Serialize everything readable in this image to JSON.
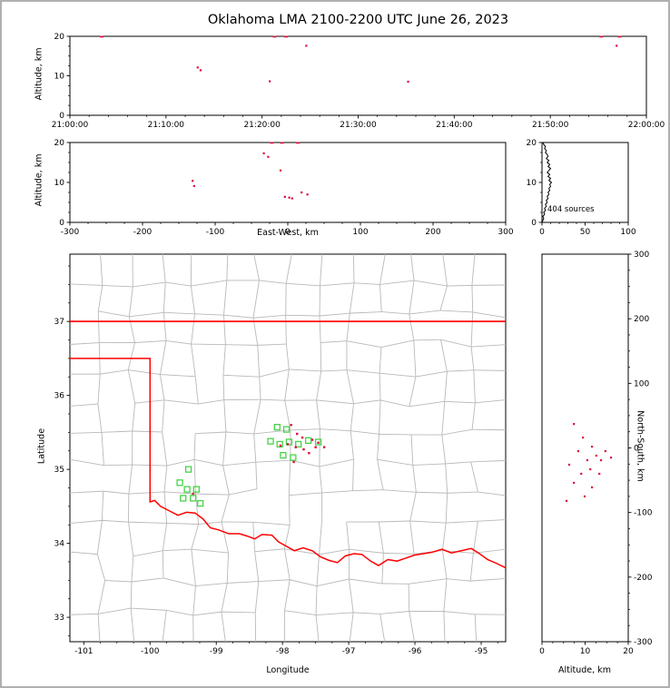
{
  "page": {
    "title": "Oklahoma LMA 2100-2200 UTC June 26, 2023",
    "background": "#ffffff",
    "frame_color": "#b0b0b0"
  },
  "colors": {
    "source_dot": "#dd0f3c",
    "station_marker": "#46d346",
    "state_border": "#ff0000",
    "county_line": "#b9b9b9",
    "histogram_line": "#000000",
    "axis": "#000000"
  },
  "chart_data": [
    {
      "id": "time-altitude",
      "type": "scatter",
      "xlabel": "",
      "ylabel": "Altitude, km",
      "xlim_minutes_after_2100": [
        0,
        60
      ],
      "x_ticks": [
        0,
        10,
        20,
        30,
        40,
        50,
        60
      ],
      "x_tick_labels": [
        "21:00:00",
        "21:10:00",
        "21:20:00",
        "21:30:00",
        "21:40:00",
        "21:50:00",
        "22:00:00"
      ],
      "x_minor_step": 2,
      "ylim": [
        0,
        20
      ],
      "y_ticks": [
        0,
        10,
        20
      ],
      "y_tick_labels": [
        "0",
        "10",
        "20"
      ],
      "y_minor_step": 2.5,
      "points_min_alt": [
        [
          3.3,
          19.9
        ],
        [
          13.3,
          12.1
        ],
        [
          13.6,
          11.4
        ],
        [
          20.8,
          8.6
        ],
        [
          21.3,
          19.9
        ],
        [
          22.5,
          19.9
        ],
        [
          24.6,
          17.6
        ],
        [
          35.2,
          8.5
        ],
        [
          55.3,
          19.9
        ],
        [
          57.2,
          19.9
        ],
        [
          56.9,
          17.6
        ]
      ]
    },
    {
      "id": "eastwest-altitude",
      "type": "scatter",
      "xlabel": "East-West, km",
      "ylabel": "Altitude, km",
      "xlim": [
        -300,
        300
      ],
      "x_ticks": [
        -300,
        -200,
        -100,
        0,
        100,
        200,
        300
      ],
      "x_tick_labels": [
        "-300",
        "-200",
        "-100",
        "0",
        "100",
        "200",
        "300"
      ],
      "x_minor_step": 25,
      "ylim": [
        0,
        20
      ],
      "y_ticks": [
        0,
        10,
        20
      ],
      "y_tick_labels": [
        "0",
        "10",
        "20"
      ],
      "y_minor_step": 2.5,
      "points_ew_alt": [
        [
          -131,
          10.4
        ],
        [
          -129,
          9.1
        ],
        [
          -33,
          17.3
        ],
        [
          -27,
          16.4
        ],
        [
          -10,
          13.0
        ],
        [
          -22,
          19.9
        ],
        [
          -8,
          19.9
        ],
        [
          14,
          19.9
        ],
        [
          -4,
          6.4
        ],
        [
          2,
          6.2
        ],
        [
          6,
          6.0
        ],
        [
          19,
          7.5
        ],
        [
          27,
          7.0
        ]
      ]
    },
    {
      "id": "altitude-histogram",
      "type": "line",
      "annotation": "404 sources",
      "xlabel": "",
      "ylabel": "",
      "xlim": [
        0,
        100
      ],
      "x_ticks": [
        0,
        50,
        100
      ],
      "x_tick_labels": [
        "0",
        "50",
        "100"
      ],
      "x_minor_step": 10,
      "ylim": [
        0,
        20
      ],
      "y_ticks": [
        0,
        10,
        20
      ],
      "y_tick_labels": [
        "0",
        "10",
        "20"
      ],
      "y_minor_step": 2.5,
      "alt_step_km": 0.5,
      "counts": [
        0,
        1,
        2,
        1,
        3,
        2,
        4,
        3,
        5,
        4,
        6,
        5,
        7,
        6,
        8,
        7,
        9,
        8,
        10,
        9,
        11,
        8,
        10,
        7,
        9,
        6,
        8,
        10,
        7,
        9,
        6,
        8,
        5,
        7,
        6,
        4,
        5,
        3,
        4,
        2,
        1
      ]
    },
    {
      "id": "plan-view-map",
      "type": "scatter",
      "xlabel": "Longitude",
      "ylabel": "Latitude",
      "xlim": [
        -101.21,
        -94.63
      ],
      "x_ticks": [
        -101,
        -100,
        -99,
        -98,
        -97,
        -96,
        -95
      ],
      "x_tick_labels": [
        "-101",
        "-100",
        "-99",
        "-98",
        "-97",
        "-96",
        "-95"
      ],
      "x_minor_step": 0.25,
      "ylim": [
        32.67,
        37.91
      ],
      "y_ticks": [
        33,
        34,
        35,
        36,
        37
      ],
      "y_tick_labels": [
        "33",
        "34",
        "35",
        "36",
        "37"
      ],
      "y_minor_step": 0.25,
      "state_border_north_37n": [
        [
          -101.21,
          37
        ],
        [
          -94.63,
          37
        ]
      ],
      "state_border_west_south": [
        [
          -101.21,
          36.5
        ],
        [
          -100.0,
          36.5
        ],
        [
          -100.0,
          34.56
        ],
        [
          -99.93,
          34.58
        ],
        [
          -99.84,
          34.5
        ],
        [
          -99.71,
          34.44
        ],
        [
          -99.58,
          34.38
        ],
        [
          -99.45,
          34.42
        ],
        [
          -99.32,
          34.41
        ],
        [
          -99.2,
          34.33
        ],
        [
          -99.09,
          34.21
        ],
        [
          -98.96,
          34.18
        ],
        [
          -98.81,
          34.13
        ],
        [
          -98.65,
          34.13
        ],
        [
          -98.54,
          34.1
        ],
        [
          -98.42,
          34.06
        ],
        [
          -98.31,
          34.12
        ],
        [
          -98.16,
          34.11
        ],
        [
          -98.06,
          34.02
        ],
        [
          -97.94,
          33.96
        ],
        [
          -97.82,
          33.9
        ],
        [
          -97.69,
          33.94
        ],
        [
          -97.55,
          33.9
        ],
        [
          -97.43,
          33.82
        ],
        [
          -97.3,
          33.77
        ],
        [
          -97.17,
          33.74
        ],
        [
          -97.05,
          33.83
        ],
        [
          -96.92,
          33.86
        ],
        [
          -96.8,
          33.85
        ],
        [
          -96.67,
          33.76
        ],
        [
          -96.55,
          33.7
        ],
        [
          -96.41,
          33.78
        ],
        [
          -96.27,
          33.76
        ],
        [
          -96.14,
          33.8
        ],
        [
          -96.01,
          33.84
        ],
        [
          -95.87,
          33.86
        ],
        [
          -95.74,
          33.88
        ],
        [
          -95.59,
          33.92
        ],
        [
          -95.45,
          33.87
        ],
        [
          -95.3,
          33.9
        ],
        [
          -95.15,
          33.93
        ],
        [
          -95.04,
          33.87
        ],
        [
          -94.9,
          33.78
        ],
        [
          -94.77,
          33.73
        ],
        [
          -94.63,
          33.67
        ]
      ],
      "county_grid": {
        "cols": 14,
        "rows": 13,
        "seed": 11
      },
      "stations_lon_lat": [
        [
          -99.42,
          35.0
        ],
        [
          -99.55,
          34.82
        ],
        [
          -99.44,
          34.73
        ],
        [
          -99.3,
          34.73
        ],
        [
          -99.5,
          34.61
        ],
        [
          -99.35,
          34.61
        ],
        [
          -99.24,
          34.54
        ],
        [
          -98.08,
          35.57
        ],
        [
          -97.94,
          35.54
        ],
        [
          -98.18,
          35.38
        ],
        [
          -98.04,
          35.34
        ],
        [
          -97.9,
          35.37
        ],
        [
          -97.76,
          35.34
        ],
        [
          -97.61,
          35.39
        ],
        [
          -97.46,
          35.37
        ],
        [
          -97.99,
          35.19
        ],
        [
          -97.84,
          35.16
        ]
      ],
      "sources_lon_lat": [
        [
          -97.87,
          35.6
        ],
        [
          -97.78,
          35.48
        ],
        [
          -97.7,
          35.43
        ],
        [
          -97.55,
          35.4
        ],
        [
          -98.03,
          35.32
        ],
        [
          -97.92,
          35.34
        ],
        [
          -97.8,
          35.3
        ],
        [
          -97.68,
          35.27
        ],
        [
          -97.5,
          35.3
        ],
        [
          -97.37,
          35.3
        ],
        [
          -97.6,
          35.22
        ],
        [
          -97.83,
          35.1
        ],
        [
          -99.35,
          34.67
        ],
        [
          -97.46,
          35.36
        ]
      ]
    },
    {
      "id": "altitude-northsouth",
      "type": "scatter",
      "xlabel": "Altitude, km",
      "ylabel": "North-South, km",
      "xlim": [
        0,
        20
      ],
      "x_ticks": [
        0,
        10,
        20
      ],
      "x_tick_labels": [
        "0",
        "10",
        "20"
      ],
      "x_minor_step": 2.5,
      "ylim": [
        -300,
        300
      ],
      "y_ticks": [
        -300,
        -200,
        -100,
        0,
        100,
        200,
        300
      ],
      "y_tick_labels": [
        "-300",
        "-200",
        "-100",
        "0",
        "100",
        "200",
        "300"
      ],
      "y_minor_step": 25,
      "points_alt_ns": [
        [
          7.4,
          37
        ],
        [
          9.5,
          16
        ],
        [
          11.6,
          2
        ],
        [
          8.4,
          -5
        ],
        [
          14.7,
          -5
        ],
        [
          12.6,
          -12
        ],
        [
          16,
          -15
        ],
        [
          10.5,
          -19
        ],
        [
          13.7,
          -19
        ],
        [
          6.3,
          -26
        ],
        [
          11.2,
          -33
        ],
        [
          9.1,
          -40
        ],
        [
          13.3,
          -40
        ],
        [
          7.4,
          -54
        ],
        [
          11.6,
          -61
        ],
        [
          9.9,
          -75
        ],
        [
          5.7,
          -82
        ]
      ]
    }
  ]
}
